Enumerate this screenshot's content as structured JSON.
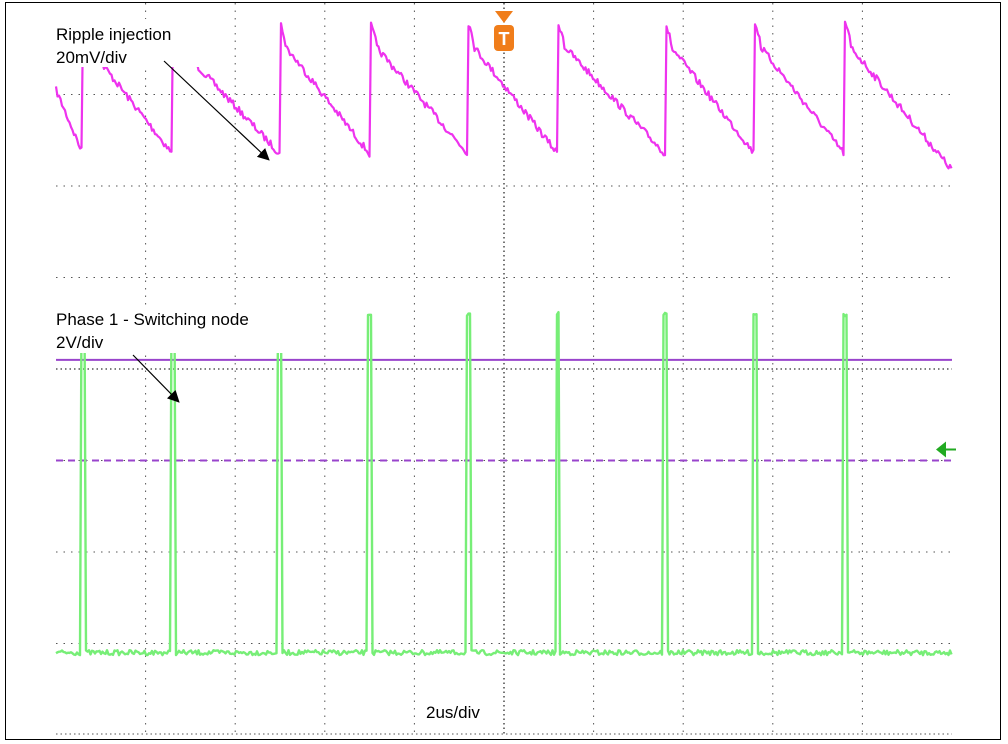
{
  "chart_data": {
    "type": "line",
    "timebase": "2us/div",
    "grid": true,
    "trigger_marker": "T",
    "series": [
      {
        "name": "Ripple injection",
        "scale": "20mV/div",
        "color": "#ee33ee",
        "pulse_times_div": [
          0.3,
          1.3,
          2.5,
          3.5,
          4.6,
          5.6,
          6.8,
          7.8,
          8.8
        ],
        "rise_div": 0.9,
        "level_low_div": 0.75,
        "level_high_div": -0.5
      },
      {
        "name": "Phase 1 - Switching node",
        "scale": "2V/div",
        "color": "#77ee77",
        "pulse_times_div": [
          0.3,
          1.3,
          2.5,
          3.5,
          4.6,
          5.6,
          6.8,
          7.8,
          8.8
        ],
        "baseline_div": 7.1,
        "peak_div": 3.4
      }
    ],
    "reference_lines": [
      {
        "style": "solid",
        "color": "#9944cc",
        "level_div": 3.9
      },
      {
        "style": "dashed",
        "color": "#9944cc",
        "level_div": 5.0
      }
    ],
    "ground_marker_color": "#22aa22"
  },
  "labels": {
    "ripple_title": "Ripple injection",
    "ripple_scale": "20mV/div",
    "phase_title": "Phase 1 - Switching node",
    "phase_scale": "2V/div",
    "timebase": "2us/div",
    "trigger": "T"
  }
}
